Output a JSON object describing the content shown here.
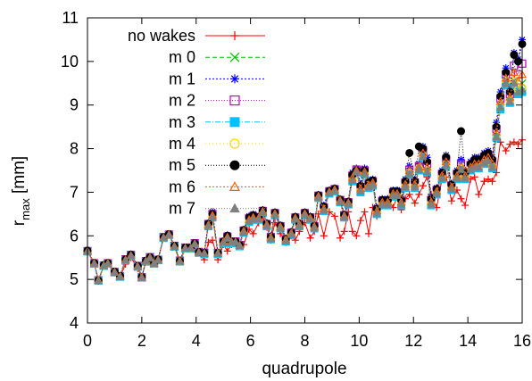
{
  "chart_data": {
    "type": "line",
    "title": "",
    "xlabel": "quadrupole",
    "ylabel_main": "r",
    "ylabel_sub": "max",
    "ylabel_unit": " [mm]",
    "xlim": [
      0,
      16
    ],
    "ylim": [
      4,
      11
    ],
    "xticks": [
      0,
      2,
      4,
      6,
      8,
      10,
      12,
      14,
      16
    ],
    "yticks": [
      4,
      5,
      6,
      7,
      8,
      9,
      10,
      11
    ],
    "grid": false,
    "legend_position": "top-left",
    "x": [
      0.0,
      0.25,
      0.4,
      0.6,
      0.75,
      1.0,
      1.2,
      1.4,
      1.6,
      1.85,
      2.0,
      2.15,
      2.3,
      2.45,
      2.6,
      2.8,
      3.0,
      3.2,
      3.4,
      3.6,
      3.8,
      3.95,
      4.1,
      4.3,
      4.45,
      4.6,
      4.8,
      5.0,
      5.15,
      5.3,
      5.45,
      5.6,
      5.75,
      5.95,
      6.1,
      6.3,
      6.45,
      6.6,
      6.75,
      6.9,
      7.1,
      7.3,
      7.5,
      7.65,
      7.8,
      8.0,
      8.2,
      8.35,
      8.5,
      8.7,
      8.9,
      9.1,
      9.3,
      9.45,
      9.6,
      9.75,
      9.9,
      10.05,
      10.2,
      10.35,
      10.5,
      10.65,
      10.85,
      11.05,
      11.25,
      11.4,
      11.55,
      11.7,
      11.85,
      12.05,
      12.2,
      12.35,
      12.5,
      12.65,
      12.85,
      13.05,
      13.2,
      13.4,
      13.6,
      13.75,
      13.9,
      14.1,
      14.25,
      14.4,
      14.6,
      14.75,
      14.9,
      15.05,
      15.2,
      15.4,
      15.55,
      15.7,
      15.85,
      16.0
    ],
    "series": [
      {
        "name": "no wakes",
        "color": "#ff0000",
        "marker": "plus",
        "dash": "",
        "values": [
          5.65,
          5.35,
          4.97,
          5.3,
          5.35,
          5.15,
          5.05,
          5.35,
          5.5,
          5.25,
          5.05,
          5.4,
          5.5,
          5.35,
          5.45,
          5.95,
          6.02,
          5.75,
          5.4,
          5.7,
          5.7,
          5.8,
          5.6,
          5.45,
          5.85,
          5.9,
          5.45,
          5.8,
          5.65,
          5.8,
          5.82,
          5.75,
          5.8,
          6.15,
          6.05,
          6.3,
          6.45,
          6.2,
          5.9,
          6.3,
          6.05,
          5.85,
          6.0,
          5.9,
          6.1,
          6.3,
          5.95,
          6.1,
          6.5,
          6.0,
          6.55,
          6.45,
          5.95,
          6.1,
          6.55,
          6.1,
          6.0,
          6.35,
          6.55,
          6.05,
          6.65,
          6.45,
          6.7,
          6.85,
          6.65,
          6.9,
          6.6,
          6.85,
          6.95,
          6.75,
          6.95,
          7.15,
          7.35,
          6.95,
          6.65,
          7.3,
          7.35,
          6.8,
          7.05,
          6.85,
          6.7,
          7.3,
          7.35,
          6.95,
          7.25,
          7.3,
          7.25,
          7.45,
          8.15,
          7.95,
          8.1,
          8.15,
          8.1,
          8.2
        ]
      },
      {
        "name": "m 0",
        "color": "#00c000",
        "marker": "x",
        "dash": "5,3",
        "values": [
          5.65,
          5.37,
          4.98,
          5.32,
          5.37,
          5.17,
          5.07,
          5.45,
          5.55,
          5.3,
          5.05,
          5.42,
          5.5,
          5.37,
          5.45,
          5.96,
          6.03,
          5.76,
          5.42,
          5.72,
          5.72,
          5.82,
          5.62,
          5.6,
          6.25,
          6.45,
          5.6,
          5.85,
          5.95,
          5.85,
          5.86,
          5.78,
          6.1,
          6.35,
          6.4,
          6.4,
          6.55,
          6.25,
          5.95,
          6.5,
          6.2,
          5.9,
          6.05,
          6.4,
          6.25,
          6.5,
          6.4,
          6.2,
          6.9,
          6.6,
          7.0,
          7.05,
          6.8,
          6.45,
          6.75,
          7.3,
          7.5,
          7.05,
          7.45,
          7.15,
          7.2,
          6.55,
          6.75,
          6.75,
          6.95,
          6.95,
          6.75,
          7.15,
          7.45,
          7.15,
          7.55,
          7.85,
          7.5,
          6.75,
          7.0,
          7.35,
          7.65,
          7.1,
          7.35,
          7.55,
          7.35,
          7.55,
          7.6,
          7.6,
          7.7,
          7.75,
          7.6,
          8.3,
          9.0,
          9.55,
          9.1,
          9.55,
          9.35,
          9.5
        ]
      },
      {
        "name": "m 1",
        "color": "#0000ff",
        "marker": "asterisk",
        "dash": "2,2",
        "values": [
          5.66,
          5.38,
          4.98,
          5.33,
          5.38,
          5.18,
          5.08,
          5.47,
          5.58,
          5.32,
          5.06,
          5.43,
          5.52,
          5.38,
          5.46,
          5.98,
          6.04,
          5.78,
          5.44,
          5.74,
          5.74,
          5.84,
          5.64,
          5.62,
          6.3,
          6.55,
          5.62,
          5.88,
          6.02,
          5.88,
          5.88,
          5.8,
          6.15,
          6.45,
          6.5,
          6.45,
          6.6,
          6.3,
          6.0,
          6.55,
          6.25,
          5.95,
          6.1,
          6.45,
          6.3,
          6.55,
          6.45,
          6.25,
          6.95,
          6.7,
          7.05,
          7.1,
          6.85,
          6.5,
          6.8,
          7.45,
          7.55,
          7.2,
          7.55,
          7.25,
          7.3,
          6.65,
          6.85,
          6.85,
          7.05,
          7.05,
          6.85,
          7.3,
          7.6,
          7.3,
          7.65,
          8.05,
          7.8,
          6.9,
          7.1,
          7.5,
          7.85,
          7.2,
          7.5,
          7.75,
          7.5,
          7.7,
          7.8,
          7.8,
          7.9,
          7.95,
          7.8,
          8.6,
          9.3,
          9.85,
          9.4,
          10.2,
          10.05,
          10.5
        ]
      },
      {
        "name": "m 2",
        "color": "#c000c0",
        "marker": "square",
        "dash": "1,2",
        "values": [
          5.65,
          5.37,
          4.98,
          5.32,
          5.37,
          5.17,
          5.07,
          5.46,
          5.56,
          5.31,
          5.05,
          5.42,
          5.51,
          5.37,
          5.45,
          5.97,
          6.03,
          5.77,
          5.43,
          5.73,
          5.73,
          5.83,
          5.63,
          5.61,
          6.27,
          6.5,
          5.61,
          5.86,
          5.98,
          5.86,
          5.87,
          5.79,
          6.12,
          6.4,
          6.45,
          6.42,
          6.57,
          6.27,
          5.97,
          6.52,
          6.22,
          5.92,
          6.07,
          6.42,
          6.27,
          6.52,
          6.42,
          6.22,
          6.92,
          6.65,
          7.02,
          7.07,
          6.82,
          6.47,
          6.77,
          7.38,
          7.52,
          7.12,
          7.5,
          7.2,
          7.25,
          6.6,
          6.8,
          6.8,
          7.0,
          7.0,
          6.8,
          7.22,
          7.52,
          7.22,
          7.6,
          7.95,
          7.65,
          6.82,
          7.05,
          7.42,
          7.75,
          7.15,
          7.42,
          7.65,
          7.42,
          7.62,
          7.7,
          7.7,
          7.8,
          7.85,
          7.7,
          8.45,
          9.15,
          9.7,
          9.25,
          9.9,
          9.7,
          9.95
        ]
      },
      {
        "name": "m 3",
        "color": "#00c0ff",
        "marker": "filled-square",
        "dash": "6,2,1,2",
        "values": [
          5.64,
          5.36,
          4.97,
          5.31,
          5.36,
          5.16,
          5.06,
          5.44,
          5.54,
          5.29,
          5.04,
          5.41,
          5.49,
          5.36,
          5.44,
          5.95,
          6.02,
          5.75,
          5.41,
          5.71,
          5.71,
          5.81,
          5.61,
          5.58,
          6.22,
          6.42,
          5.58,
          5.83,
          5.93,
          5.83,
          5.84,
          5.76,
          6.07,
          6.32,
          6.37,
          6.37,
          6.52,
          6.22,
          5.92,
          6.47,
          6.17,
          5.87,
          6.02,
          6.37,
          6.22,
          6.47,
          6.37,
          6.17,
          6.87,
          6.57,
          6.97,
          7.02,
          6.77,
          6.42,
          6.72,
          7.25,
          7.45,
          7.0,
          7.4,
          7.1,
          7.15,
          6.5,
          6.7,
          6.7,
          6.9,
          6.9,
          6.7,
          7.1,
          7.4,
          7.1,
          7.5,
          7.8,
          7.45,
          6.7,
          6.95,
          7.3,
          7.6,
          7.05,
          7.3,
          7.5,
          7.3,
          7.5,
          7.55,
          7.55,
          7.65,
          7.7,
          7.55,
          8.25,
          8.9,
          9.45,
          9.05,
          9.45,
          9.25,
          9.3
        ]
      },
      {
        "name": "m 4",
        "color": "#ffd700",
        "marker": "circle",
        "dash": "1,3",
        "values": [
          5.65,
          5.37,
          4.98,
          5.32,
          5.37,
          5.17,
          5.07,
          5.45,
          5.55,
          5.3,
          5.05,
          5.42,
          5.5,
          5.37,
          5.45,
          5.96,
          6.03,
          5.76,
          5.42,
          5.72,
          5.72,
          5.82,
          5.62,
          5.6,
          6.24,
          6.45,
          5.6,
          5.85,
          5.95,
          5.85,
          5.86,
          5.78,
          6.1,
          6.35,
          6.4,
          6.4,
          6.55,
          6.25,
          5.95,
          6.5,
          6.2,
          5.9,
          6.05,
          6.4,
          6.25,
          6.5,
          6.4,
          6.2,
          6.9,
          6.6,
          7.0,
          7.05,
          6.8,
          6.45,
          6.75,
          7.3,
          7.48,
          7.05,
          7.45,
          7.15,
          7.2,
          6.55,
          6.75,
          6.75,
          6.95,
          6.95,
          6.75,
          7.15,
          7.45,
          7.15,
          7.55,
          7.85,
          7.5,
          6.75,
          7.0,
          7.35,
          7.65,
          7.1,
          7.35,
          7.55,
          7.35,
          7.55,
          7.6,
          7.6,
          7.7,
          7.75,
          7.6,
          8.3,
          9.0,
          9.55,
          9.1,
          9.55,
          9.35,
          9.4
        ]
      },
      {
        "name": "m 5",
        "color": "#000000",
        "marker": "filled-circle",
        "dash": "1,2",
        "values": [
          5.66,
          5.38,
          4.98,
          5.33,
          5.38,
          5.18,
          5.08,
          5.46,
          5.57,
          5.31,
          5.06,
          5.43,
          5.51,
          5.38,
          5.46,
          5.97,
          6.04,
          5.77,
          5.43,
          5.73,
          5.73,
          5.83,
          5.63,
          5.61,
          6.28,
          6.5,
          5.61,
          5.87,
          6.0,
          5.87,
          5.87,
          5.79,
          6.13,
          6.42,
          6.47,
          6.43,
          6.58,
          6.28,
          5.98,
          6.53,
          6.23,
          5.93,
          6.08,
          6.43,
          6.28,
          6.53,
          6.43,
          6.23,
          6.93,
          6.67,
          7.03,
          7.08,
          6.83,
          6.48,
          6.78,
          7.4,
          7.5,
          7.15,
          7.5,
          7.22,
          7.27,
          6.62,
          6.82,
          6.82,
          7.02,
          7.02,
          6.82,
          7.25,
          7.9,
          7.25,
          8.05,
          8.0,
          7.7,
          6.85,
          7.07,
          7.45,
          7.8,
          7.17,
          7.45,
          8.4,
          7.45,
          7.65,
          7.75,
          7.75,
          7.85,
          7.9,
          7.75,
          8.5,
          9.2,
          9.75,
          9.3,
          10.15,
          10.0,
          10.4
        ]
      },
      {
        "name": "m 6",
        "color": "#ff6000",
        "marker": "triangle",
        "dash": "2,2",
        "values": [
          5.65,
          5.37,
          4.98,
          5.32,
          5.37,
          5.17,
          5.07,
          5.45,
          5.55,
          5.3,
          5.05,
          5.42,
          5.5,
          5.37,
          5.45,
          5.96,
          6.03,
          5.76,
          5.42,
          5.72,
          5.72,
          5.82,
          5.62,
          5.6,
          6.25,
          6.47,
          5.6,
          5.86,
          5.97,
          5.86,
          5.86,
          5.78,
          6.11,
          6.37,
          6.42,
          6.41,
          6.56,
          6.26,
          5.96,
          6.51,
          6.21,
          5.91,
          6.06,
          6.41,
          6.26,
          6.51,
          6.41,
          6.21,
          6.91,
          6.62,
          7.01,
          7.06,
          6.81,
          6.46,
          6.76,
          7.33,
          7.5,
          7.08,
          7.47,
          7.17,
          7.22,
          6.57,
          6.77,
          6.77,
          6.97,
          6.97,
          6.77,
          7.18,
          7.5,
          7.18,
          7.58,
          7.9,
          7.58,
          6.78,
          7.02,
          7.38,
          7.7,
          7.12,
          7.38,
          7.6,
          7.38,
          7.58,
          7.65,
          7.65,
          7.75,
          7.8,
          7.65,
          8.38,
          9.08,
          9.62,
          9.18,
          9.75,
          9.55,
          9.7
        ]
      },
      {
        "name": "m 7",
        "color": "#808080",
        "marker": "filled-triangle",
        "dash": "1,2",
        "values": [
          5.64,
          5.36,
          4.97,
          5.31,
          5.36,
          5.16,
          5.06,
          5.44,
          5.54,
          5.29,
          5.04,
          5.41,
          5.49,
          5.36,
          5.44,
          5.95,
          6.02,
          5.75,
          5.41,
          5.71,
          5.71,
          5.81,
          5.61,
          5.59,
          6.23,
          6.43,
          5.59,
          5.84,
          5.94,
          5.84,
          5.85,
          5.77,
          6.08,
          6.33,
          6.38,
          6.38,
          6.53,
          6.23,
          5.93,
          6.48,
          6.18,
          5.88,
          6.03,
          6.38,
          6.23,
          6.48,
          6.38,
          6.18,
          6.88,
          6.58,
          6.98,
          7.03,
          6.78,
          6.43,
          6.73,
          7.27,
          7.46,
          7.02,
          7.42,
          7.12,
          7.17,
          6.52,
          6.72,
          6.72,
          6.92,
          6.92,
          6.72,
          7.12,
          7.42,
          7.12,
          7.52,
          7.82,
          7.47,
          6.72,
          6.97,
          7.32,
          7.62,
          7.07,
          7.32,
          7.52,
          7.32,
          7.52,
          7.57,
          7.57,
          7.67,
          7.72,
          7.57,
          8.27,
          8.95,
          9.5,
          9.07,
          9.5,
          9.3,
          9.35
        ]
      }
    ]
  }
}
